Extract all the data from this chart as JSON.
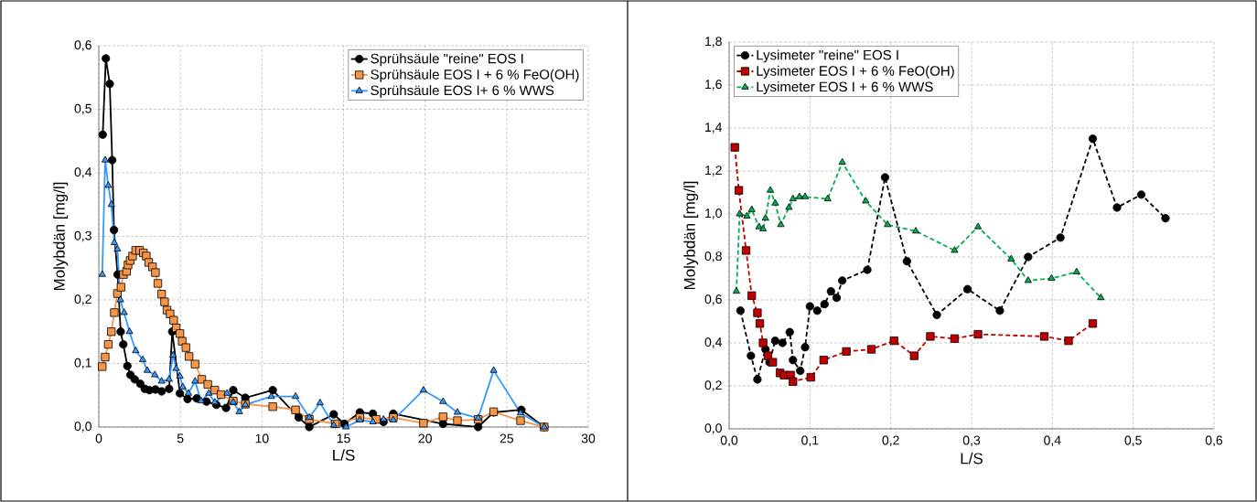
{
  "chart_data": [
    {
      "type": "line",
      "xlabel": "L/S",
      "ylabel": "Molybdän [mg/l]",
      "xlim": [
        0,
        30
      ],
      "ylim": [
        0,
        0.6
      ],
      "xticks": [
        0,
        5,
        10,
        15,
        20,
        25,
        30
      ],
      "yticks": [
        {
          "value": 0,
          "label": "0,0"
        },
        {
          "value": 0.1,
          "label": "0,1"
        },
        {
          "value": 0.2,
          "label": "0,2"
        },
        {
          "value": 0.3,
          "label": "0,3"
        },
        {
          "value": 0.4,
          "label": "0,4"
        },
        {
          "value": 0.5,
          "label": "0,5"
        },
        {
          "value": 0.6,
          "label": "0,6"
        }
      ],
      "grid": true,
      "legend": "top right",
      "line_style": "solid",
      "series": [
        {
          "name": "Sprühsäule \"reine\" EOS I",
          "color": "#000000",
          "marker": "circle",
          "x": [
            0.24,
            0.43,
            0.67,
            0.82,
            0.93,
            1.15,
            1.34,
            1.5,
            1.75,
            1.94,
            2.2,
            2.54,
            2.82,
            3.1,
            3.47,
            3.85,
            4.31,
            4.5,
            4.97,
            5.44,
            6.0,
            6.6,
            7.2,
            7.8,
            8.24,
            8.98,
            10.66,
            12.25,
            12.9,
            14.4,
            15.05,
            16.0,
            16.8,
            17.45,
            18.05,
            21.1,
            23.25,
            24.2,
            25.9,
            27.3
          ],
          "values": [
            0.46,
            0.58,
            0.54,
            0.42,
            0.31,
            0.24,
            0.15,
            0.13,
            0.096,
            0.082,
            0.075,
            0.068,
            0.06,
            0.058,
            0.059,
            0.056,
            0.06,
            0.15,
            0.053,
            0.044,
            0.045,
            0.04,
            0.035,
            0.03,
            0.058,
            0.046,
            0.058,
            0.015,
            0,
            0.02,
            0.005,
            0.023,
            0.021,
            0.008,
            0.021,
            0.005,
            0,
            0.023,
            0.027,
            0
          ]
        },
        {
          "name": "Sprühsäule EOS I + 6 % FeO(OH)",
          "color": "#f79646",
          "marker": "square",
          "x": [
            0.21,
            0.39,
            0.58,
            0.77,
            0.95,
            1.14,
            1.36,
            1.51,
            1.7,
            1.79,
            1.92,
            2.07,
            2.26,
            2.5,
            2.73,
            2.91,
            3.06,
            3.29,
            3.47,
            3.62,
            3.85,
            4.03,
            4.18,
            4.37,
            4.59,
            4.74,
            4.97,
            5.11,
            5.34,
            5.53,
            5.9,
            6.31,
            6.68,
            7.11,
            7.49,
            8.24,
            8.98,
            10.66,
            12.06,
            12.9,
            14.5,
            16.0,
            17.0,
            18.05,
            19.9,
            21.1,
            21.98,
            23.25,
            24.2,
            25.85,
            27.3
          ],
          "values": [
            0.095,
            0.11,
            0.13,
            0.15,
            0.18,
            0.21,
            0.22,
            0.24,
            0.245,
            0.255,
            0.262,
            0.269,
            0.278,
            0.278,
            0.274,
            0.269,
            0.259,
            0.252,
            0.243,
            0.226,
            0.209,
            0.197,
            0.184,
            0.178,
            0.168,
            0.156,
            0.147,
            0.135,
            0.125,
            0.111,
            0.099,
            0.075,
            0.067,
            0.058,
            0.051,
            0.041,
            0.036,
            0.032,
            0.027,
            0.012,
            0.005,
            0.015,
            0.012,
            0.015,
            0.006,
            0.016,
            0.01,
            0.012,
            0.024,
            0.01,
            0
          ]
        },
        {
          "name": "Sprühsäule EOS I+ 6 % WWS",
          "color": "#3399ff",
          "marker": "triangle",
          "x": [
            0.21,
            0.39,
            0.58,
            0.77,
            0.95,
            1.14,
            1.32,
            1.55,
            1.88,
            2.26,
            2.69,
            2.97,
            3.43,
            3.85,
            4.31,
            4.55,
            4.74,
            4.97,
            5.15,
            5.49,
            5.9,
            6.27,
            6.74,
            7.11,
            7.86,
            8.24,
            8.61,
            8.98,
            10.57,
            12.06,
            12.9,
            13.56,
            14.4,
            15.15,
            16.0,
            16.8,
            17.45,
            18.05,
            19.9,
            21.1,
            21.98,
            23.25,
            24.2,
            25.85,
            27.3
          ],
          "values": [
            0.24,
            0.42,
            0.38,
            0.35,
            0.29,
            0.28,
            0.2,
            0.18,
            0.15,
            0.12,
            0.106,
            0.089,
            0.082,
            0.072,
            0.075,
            0.113,
            0.092,
            0.08,
            0.063,
            0.053,
            0.072,
            0.041,
            0.053,
            0.039,
            0.053,
            0.039,
            0.024,
            0.035,
            0.048,
            0.048,
            0.015,
            0.038,
            0.003,
            0,
            0.011,
            0.008,
            0.012,
            0.011,
            0.058,
            0.04,
            0.023,
            0.014,
            0.089,
            0.022,
            0
          ]
        }
      ]
    },
    {
      "type": "line",
      "xlabel": "L/S",
      "ylabel": "Molybdän [mg/l]",
      "xlim": [
        0,
        0.6
      ],
      "ylim": [
        0,
        1.8
      ],
      "xticks": [
        {
          "value": 0,
          "label": "0,0"
        },
        {
          "value": 0.1,
          "label": "0,1"
        },
        {
          "value": 0.2,
          "label": "0,2"
        },
        {
          "value": 0.3,
          "label": "0,3"
        },
        {
          "value": 0.4,
          "label": "0,4"
        },
        {
          "value": 0.5,
          "label": "0,5"
        },
        {
          "value": 0.6,
          "label": "0,6"
        }
      ],
      "yticks": [
        {
          "value": 0,
          "label": "0,0"
        },
        {
          "value": 0.2,
          "label": "0,2"
        },
        {
          "value": 0.4,
          "label": "0,4"
        },
        {
          "value": 0.6,
          "label": "0,6"
        },
        {
          "value": 0.8,
          "label": "0,8"
        },
        {
          "value": 1.0,
          "label": "1,0"
        },
        {
          "value": 1.2,
          "label": "1,2"
        },
        {
          "value": 1.4,
          "label": "1,4"
        },
        {
          "value": 1.6,
          "label": "1,6"
        },
        {
          "value": 1.8,
          "label": "1,8"
        }
      ],
      "grid": true,
      "legend": "top left",
      "line_style": "dashed",
      "series": [
        {
          "name": "Lysimeter \"reine\" EOS I",
          "color": "#000000",
          "marker": "circle",
          "x": [
            0.014,
            0.027,
            0.035,
            0.045,
            0.05,
            0.057,
            0.066,
            0.075,
            0.079,
            0.088,
            0.094,
            0.1,
            0.109,
            0.118,
            0.126,
            0.133,
            0.14,
            0.171,
            0.193,
            0.22,
            0.257,
            0.295,
            0.335,
            0.37,
            0.41,
            0.45,
            0.48,
            0.51,
            0.54
          ],
          "values": [
            0.55,
            0.34,
            0.23,
            0.37,
            0.31,
            0.41,
            0.4,
            0.45,
            0.32,
            0.27,
            0.38,
            0.57,
            0.55,
            0.58,
            0.64,
            0.61,
            0.69,
            0.74,
            1.17,
            0.78,
            0.53,
            0.65,
            0.55,
            0.8,
            0.89,
            1.35,
            1.03,
            1.09,
            0.98
          ]
        },
        {
          "name": "Lysimeter EOS I + 6 % FeO(OH)",
          "color": "#c00000",
          "marker": "square",
          "x": [
            0.007,
            0.012,
            0.021,
            0.028,
            0.035,
            0.038,
            0.042,
            0.048,
            0.054,
            0.063,
            0.068,
            0.076,
            0.079,
            0.101,
            0.117,
            0.145,
            0.176,
            0.204,
            0.229,
            0.249,
            0.279,
            0.308,
            0.39,
            0.42,
            0.45
          ],
          "values": [
            1.31,
            1.11,
            0.83,
            0.62,
            0.54,
            0.49,
            0.4,
            0.34,
            0.31,
            0.26,
            0.25,
            0.25,
            0.22,
            0.24,
            0.32,
            0.36,
            0.37,
            0.41,
            0.34,
            0.43,
            0.42,
            0.44,
            0.43,
            0.41,
            0.49
          ]
        },
        {
          "name": "Lysimeter EOS I + 6 % WWS",
          "color": "#00b050",
          "marker": "triangle",
          "x": [
            0.009,
            0.013,
            0.022,
            0.028,
            0.037,
            0.042,
            0.045,
            0.051,
            0.057,
            0.064,
            0.074,
            0.079,
            0.087,
            0.094,
            0.122,
            0.14,
            0.169,
            0.196,
            0.231,
            0.279,
            0.308,
            0.349,
            0.37,
            0.399,
            0.43,
            0.46
          ],
          "values": [
            0.64,
            1.0,
            0.99,
            1.02,
            0.94,
            0.93,
            0.98,
            1.11,
            1.05,
            0.95,
            1.03,
            1.07,
            1.08,
            1.08,
            1.07,
            1.24,
            1.06,
            0.95,
            0.92,
            0.83,
            0.94,
            0.79,
            0.69,
            0.7,
            0.73,
            0.61
          ]
        }
      ]
    }
  ]
}
